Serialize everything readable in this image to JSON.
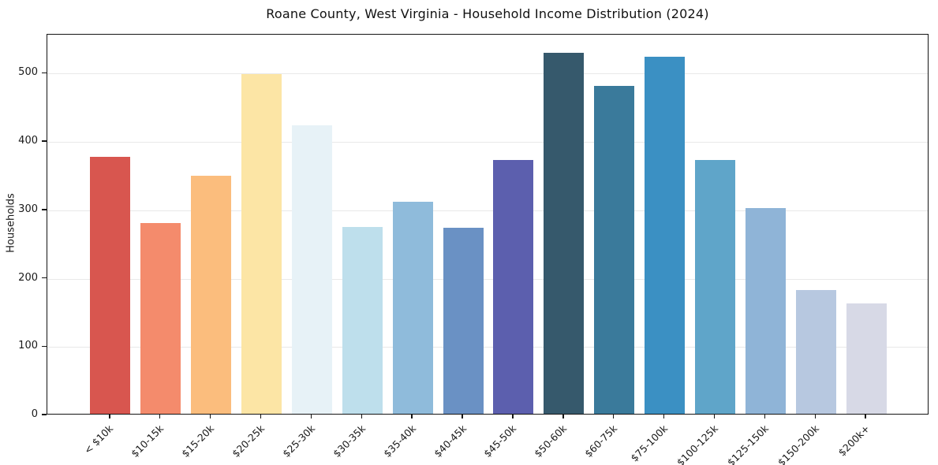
{
  "title": "Roane County, West Virginia - Household Income Distribution (2024)",
  "chart_data": {
    "type": "bar",
    "title": "Roane County, West Virginia - Household Income Distribution (2024)",
    "xlabel": "",
    "ylabel": "Households",
    "ylim": [
      0,
      557
    ],
    "yticks": [
      0,
      100,
      200,
      300,
      400,
      500
    ],
    "grid": "horizontal",
    "legend": "none",
    "categories": [
      "< $10k",
      "$10-15k",
      "$15-20k",
      "$20-25k",
      "$25-30k",
      "$30-35k",
      "$35-40k",
      "$40-45k",
      "$45-50k",
      "$50-60k",
      "$60-75k",
      "$75-100k",
      "$100-125k",
      "$125-150k",
      "$150-200k",
      "$200k+"
    ],
    "values": [
      376,
      279,
      348,
      497,
      422,
      273,
      310,
      272,
      371,
      528,
      480,
      522,
      371,
      301,
      181,
      162
    ],
    "bar_colors": [
      "#d8564f",
      "#f48b6c",
      "#fbbd7d",
      "#fce5a5",
      "#e7f2f7",
      "#bedfec",
      "#8fbbdb",
      "#6a91c4",
      "#5c5fae",
      "#36596c",
      "#3a7a9b",
      "#3b90c3",
      "#5fa5c9",
      "#8fb4d7",
      "#b7c8e0",
      "#d7d9e6"
    ],
    "grid_color": "#e9e9e9",
    "frame_color": "#141414",
    "text_color": "#1a1a1a",
    "background_color": "#ffffff"
  }
}
